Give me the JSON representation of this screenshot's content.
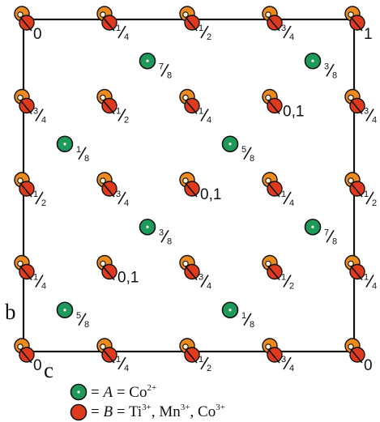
{
  "colors": {
    "site_A": "#1d9a5a",
    "site_B_front": "#e03a1c",
    "site_B_back": "#ef8a1c",
    "outline": "#111111",
    "cell_border": "#111111"
  },
  "axes": {
    "b": "b",
    "c": "c"
  },
  "legend": {
    "a": {
      "prefix": "= ",
      "site": "A",
      "mid": " = Co",
      "sup": "2+"
    },
    "b": {
      "prefix": "= ",
      "site": "B",
      "mid": " = Ti",
      "sup1": "3+",
      "mid2": ", Mn",
      "sup2": "3+",
      "mid3": ", Co",
      "sup3": "3+"
    }
  },
  "green_sites": [
    {
      "x": 1.5,
      "y": 0.5,
      "label": "7/8"
    },
    {
      "x": 3.5,
      "y": 0.5,
      "label": "3/8"
    },
    {
      "x": 0.5,
      "y": 1.5,
      "label": "1/8"
    },
    {
      "x": 2.5,
      "y": 1.5,
      "label": "5/8"
    },
    {
      "x": 1.5,
      "y": 2.5,
      "label": "3/8"
    },
    {
      "x": 3.5,
      "y": 2.5,
      "label": "7/8"
    },
    {
      "x": 0.5,
      "y": 3.5,
      "label": "5/8"
    },
    {
      "x": 2.5,
      "y": 3.5,
      "label": "1/8"
    }
  ],
  "red_sites": [
    {
      "x": 0,
      "y": 0,
      "label": "0"
    },
    {
      "x": 1,
      "y": 0,
      "label": "1/4"
    },
    {
      "x": 2,
      "y": 0,
      "label": "1/2"
    },
    {
      "x": 3,
      "y": 0,
      "label": "3/4"
    },
    {
      "x": 4,
      "y": 0,
      "label": "1"
    },
    {
      "x": 0,
      "y": 1,
      "label": "3/4"
    },
    {
      "x": 1,
      "y": 1,
      "label": "1/2"
    },
    {
      "x": 2,
      "y": 1,
      "label": "1/4"
    },
    {
      "x": 3,
      "y": 1,
      "label": "0,1"
    },
    {
      "x": 4,
      "y": 1,
      "label": "3/4"
    },
    {
      "x": 0,
      "y": 2,
      "label": "1/2"
    },
    {
      "x": 1,
      "y": 2,
      "label": "3/4"
    },
    {
      "x": 2,
      "y": 2,
      "label": "0,1"
    },
    {
      "x": 3,
      "y": 2,
      "label": "1/4"
    },
    {
      "x": 4,
      "y": 2,
      "label": "1/2"
    },
    {
      "x": 0,
      "y": 3,
      "label": "1/4"
    },
    {
      "x": 1,
      "y": 3,
      "label": "0,1"
    },
    {
      "x": 2,
      "y": 3,
      "label": "3/4"
    },
    {
      "x": 3,
      "y": 3,
      "label": "1/2"
    },
    {
      "x": 4,
      "y": 3,
      "label": "1/4"
    },
    {
      "x": 0,
      "y": 4,
      "label": "0"
    },
    {
      "x": 1,
      "y": 4,
      "label": "1/4"
    },
    {
      "x": 2,
      "y": 4,
      "label": "1/2"
    },
    {
      "x": 3,
      "y": 4,
      "label": "3/4"
    },
    {
      "x": 4,
      "y": 4,
      "label": "0"
    }
  ]
}
